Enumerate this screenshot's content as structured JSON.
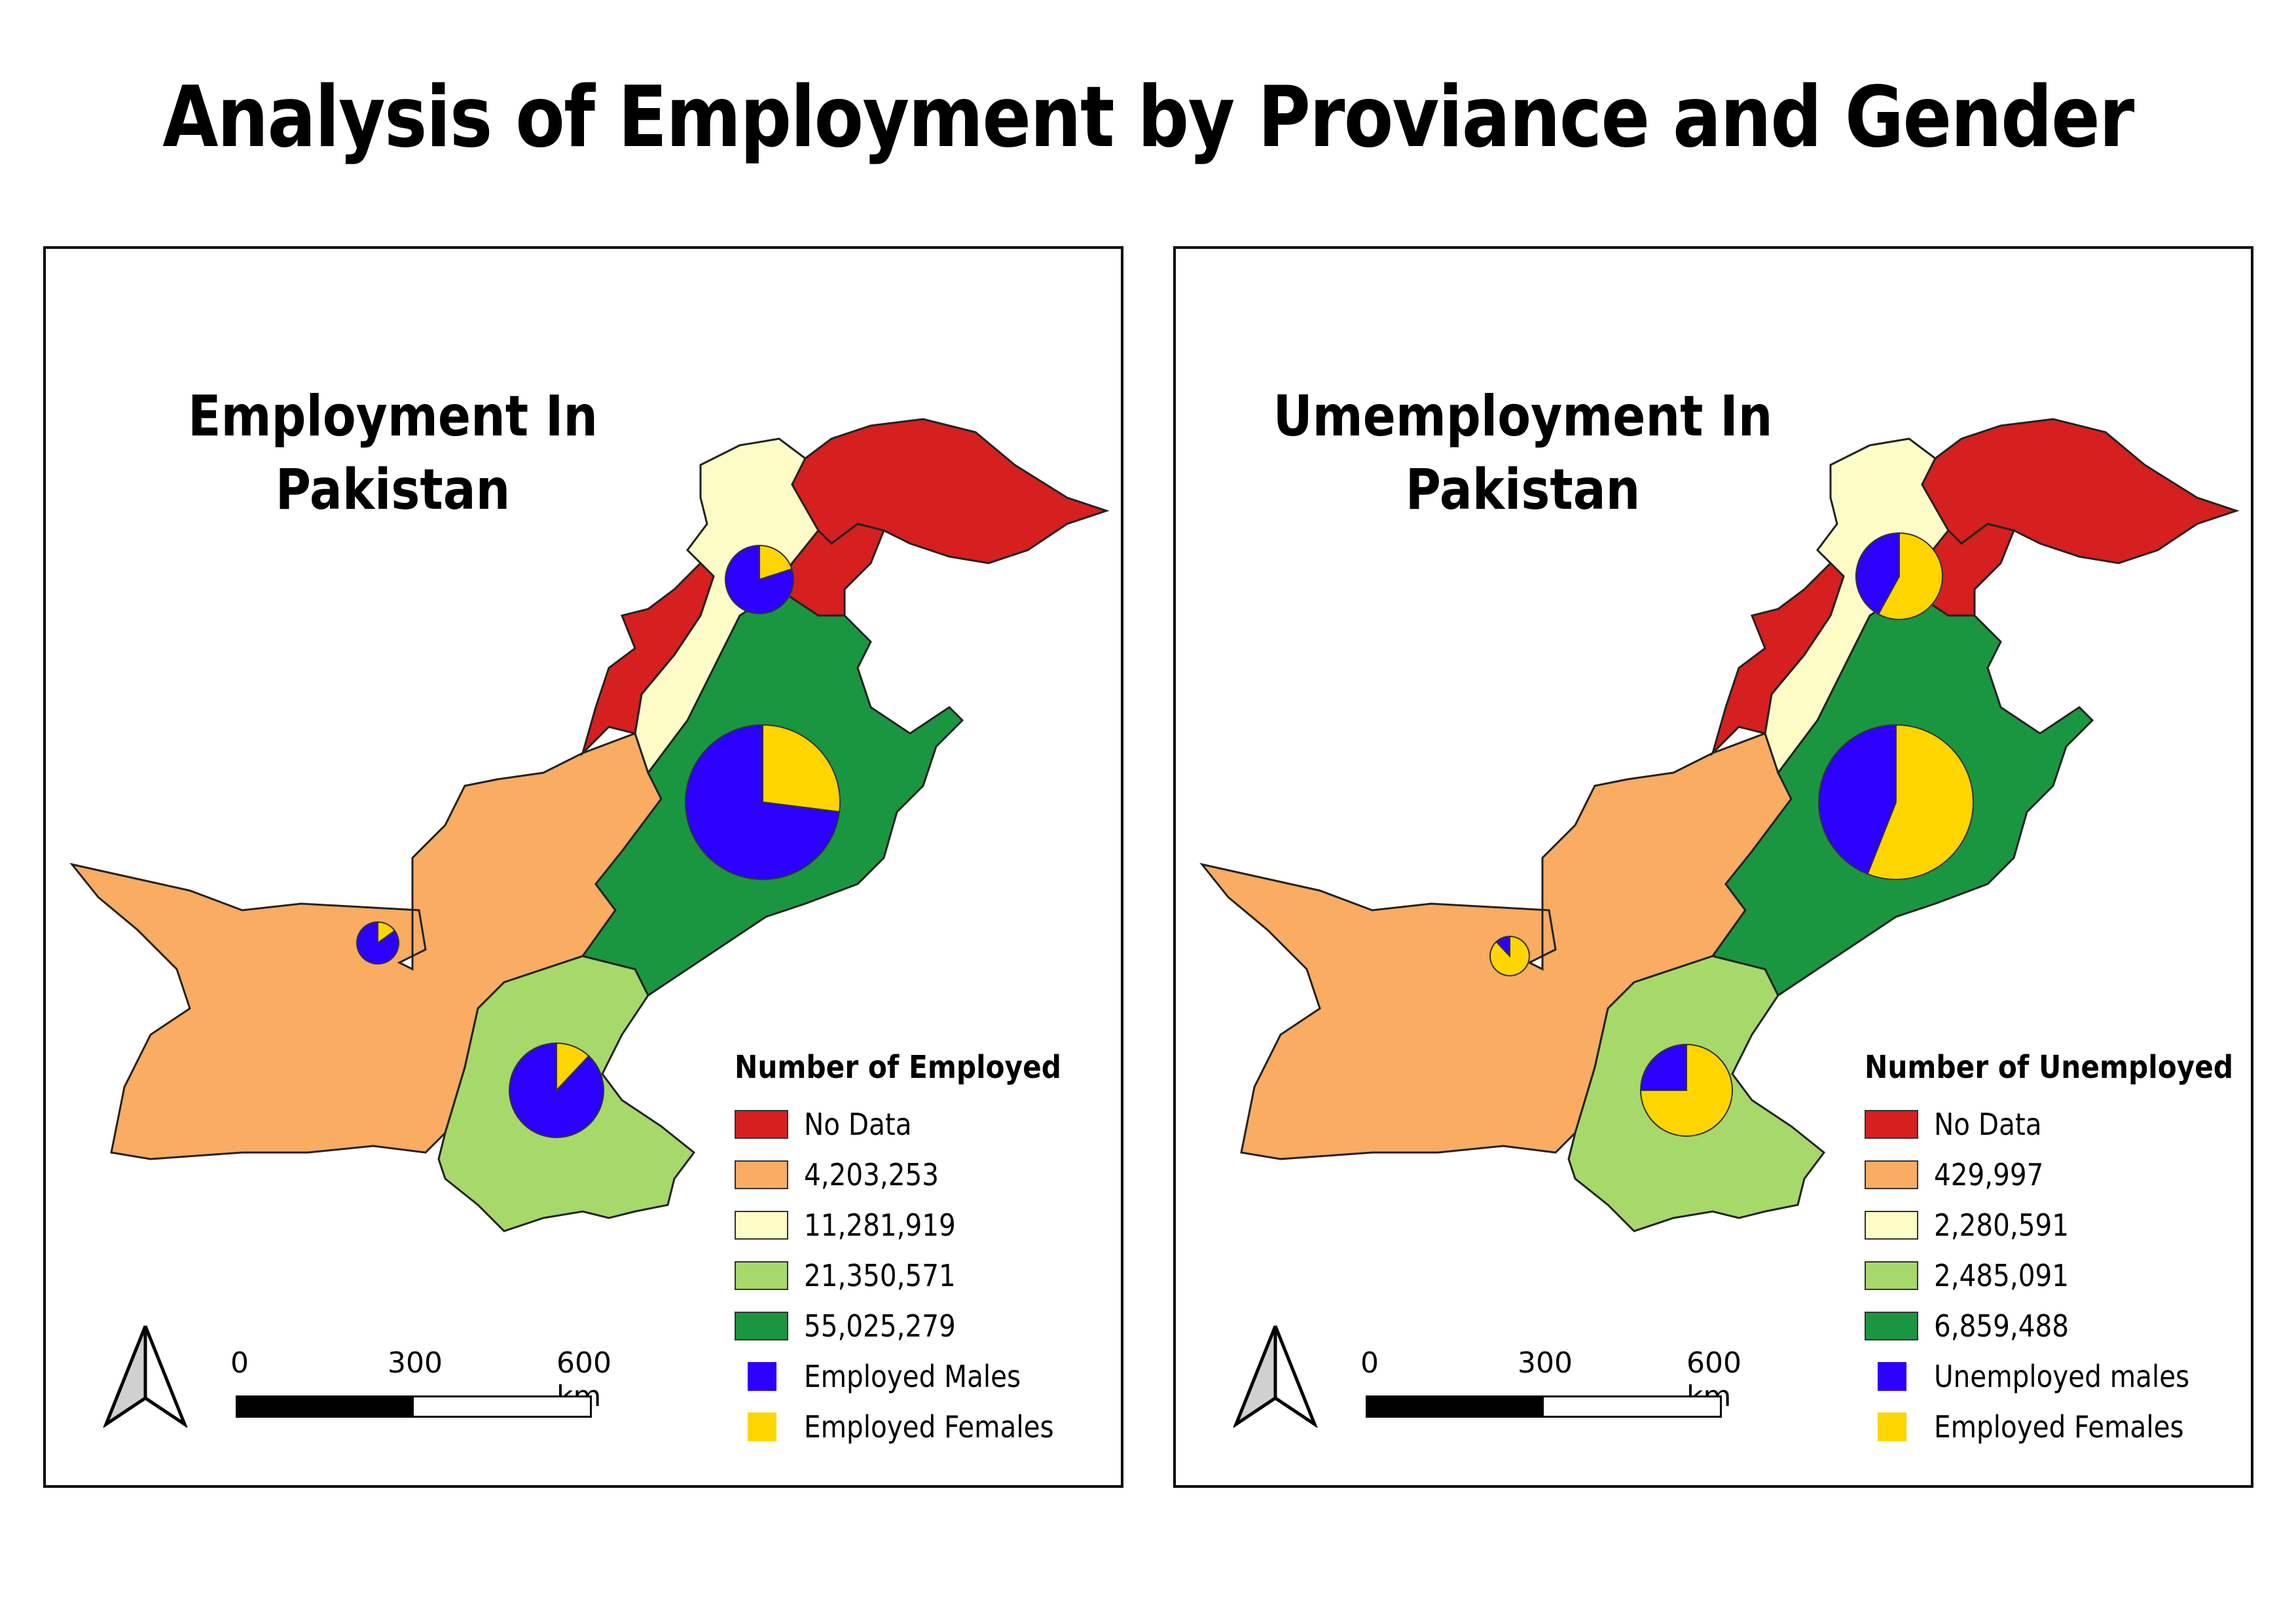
{
  "title": "Analysis of Employment by Proviance and Gender",
  "colors": {
    "no_data": "#d61f1f",
    "class1": "#f9ac62",
    "class2": "#fefcc6",
    "class3": "#a6d96a",
    "class4": "#1a9641",
    "males": "#2b00ff",
    "females": "#ffd500"
  },
  "panels": [
    {
      "title": "Employment In Pakistan",
      "legend": {
        "title": "Number of Employed",
        "classes": [
          "No Data",
          "4,203,253",
          "11,281,919",
          "21,350,571",
          "55,025,279"
        ],
        "pie_labels": [
          "Employed Males",
          "Employed Females"
        ]
      },
      "scale": {
        "labels": [
          "0",
          "300",
          "600 km"
        ]
      },
      "pies": {
        "kpk": {
          "male_share": 0.8
        },
        "punjab": {
          "male_share": 0.73
        },
        "balochistan": {
          "male_share": 0.85
        },
        "sindh": {
          "male_share": 0.88
        }
      }
    },
    {
      "title": "Umemployment In Pakistan",
      "legend": {
        "title": "Number of Unemployed",
        "classes": [
          "No Data",
          "429,997",
          "2,280,591",
          "2,485,091",
          "6,859,488"
        ],
        "pie_labels": [
          "Unemployed males",
          "Employed Females"
        ]
      },
      "scale": {
        "labels": [
          "0",
          "300",
          "600 km"
        ]
      },
      "pies": {
        "kpk": {
          "male_share": 0.42
        },
        "punjab": {
          "male_share": 0.44
        },
        "balochistan": {
          "male_share": 0.12
        },
        "sindh": {
          "male_share": 0.25
        }
      }
    }
  ]
}
